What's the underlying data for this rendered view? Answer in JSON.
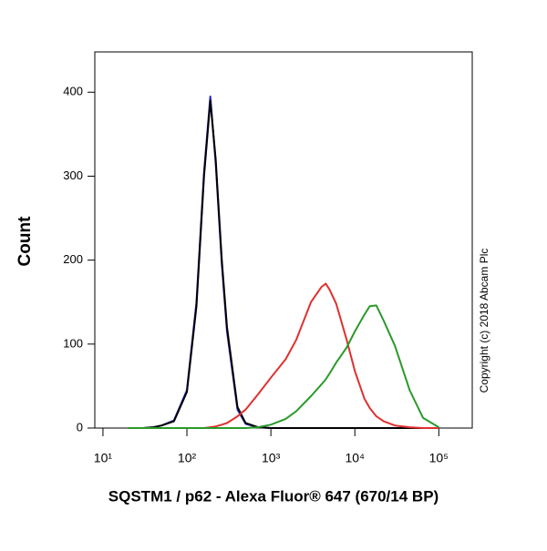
{
  "chart_data": {
    "type": "line",
    "xlabel": "SQSTM1 / p62 - Alexa Fluor® 647 (670/14 BP)",
    "ylabel": "Count",
    "annotation": "Copyright (c) 2018 Abcam Plc",
    "xscale": "log",
    "xlim": [
      8,
      250000
    ],
    "ylim": [
      0,
      448
    ],
    "xticks": [
      {
        "value": 10,
        "label": "10¹"
      },
      {
        "value": 100,
        "label": "10²"
      },
      {
        "value": 1000,
        "label": "10³"
      },
      {
        "value": 10000,
        "label": "10⁴"
      },
      {
        "value": 100000,
        "label": "10⁵"
      }
    ],
    "yticks": [
      0,
      100,
      200,
      300,
      400
    ],
    "x": [
      20,
      30,
      40,
      50,
      70,
      100,
      130,
      160,
      190,
      220,
      260,
      300,
      400,
      500,
      700,
      1000,
      1500,
      2000,
      3000,
      4000,
      4500,
      5000,
      6000,
      8000,
      10000,
      13000,
      15000,
      18000,
      22000,
      30000,
      45000,
      65000,
      100000
    ],
    "series": [
      {
        "color": "#2828c8",
        "values": [
          0,
          0,
          1,
          3,
          9,
          45,
          150,
          305,
          395,
          315,
          195,
          115,
          22,
          5,
          1,
          0,
          0,
          0,
          0,
          0,
          0,
          0,
          0,
          0,
          0,
          0,
          0,
          0,
          0,
          0,
          0,
          0,
          0
        ]
      },
      {
        "color": "#000000",
        "values": [
          0,
          0,
          1,
          3,
          8,
          43,
          145,
          300,
          390,
          320,
          200,
          120,
          25,
          6,
          1,
          0,
          0,
          0,
          0,
          0,
          0,
          0,
          0,
          0,
          0,
          0,
          0,
          0,
          0,
          0,
          0,
          0,
          0
        ]
      },
      {
        "color": "#e03030",
        "values": [
          0,
          0,
          0,
          0,
          0,
          0,
          0,
          0,
          1,
          2,
          4,
          6,
          14,
          22,
          40,
          60,
          82,
          105,
          150,
          168,
          172,
          165,
          148,
          105,
          68,
          35,
          24,
          14,
          8,
          3,
          1,
          0,
          0
        ]
      },
      {
        "color": "#2a9a2a",
        "values": [
          0,
          0,
          0,
          0,
          0,
          0,
          0,
          0,
          0,
          0,
          0,
          0,
          0,
          0,
          1,
          4,
          11,
          20,
          38,
          52,
          58,
          65,
          78,
          96,
          115,
          135,
          145,
          146,
          128,
          98,
          45,
          12,
          1
        ]
      }
    ]
  }
}
